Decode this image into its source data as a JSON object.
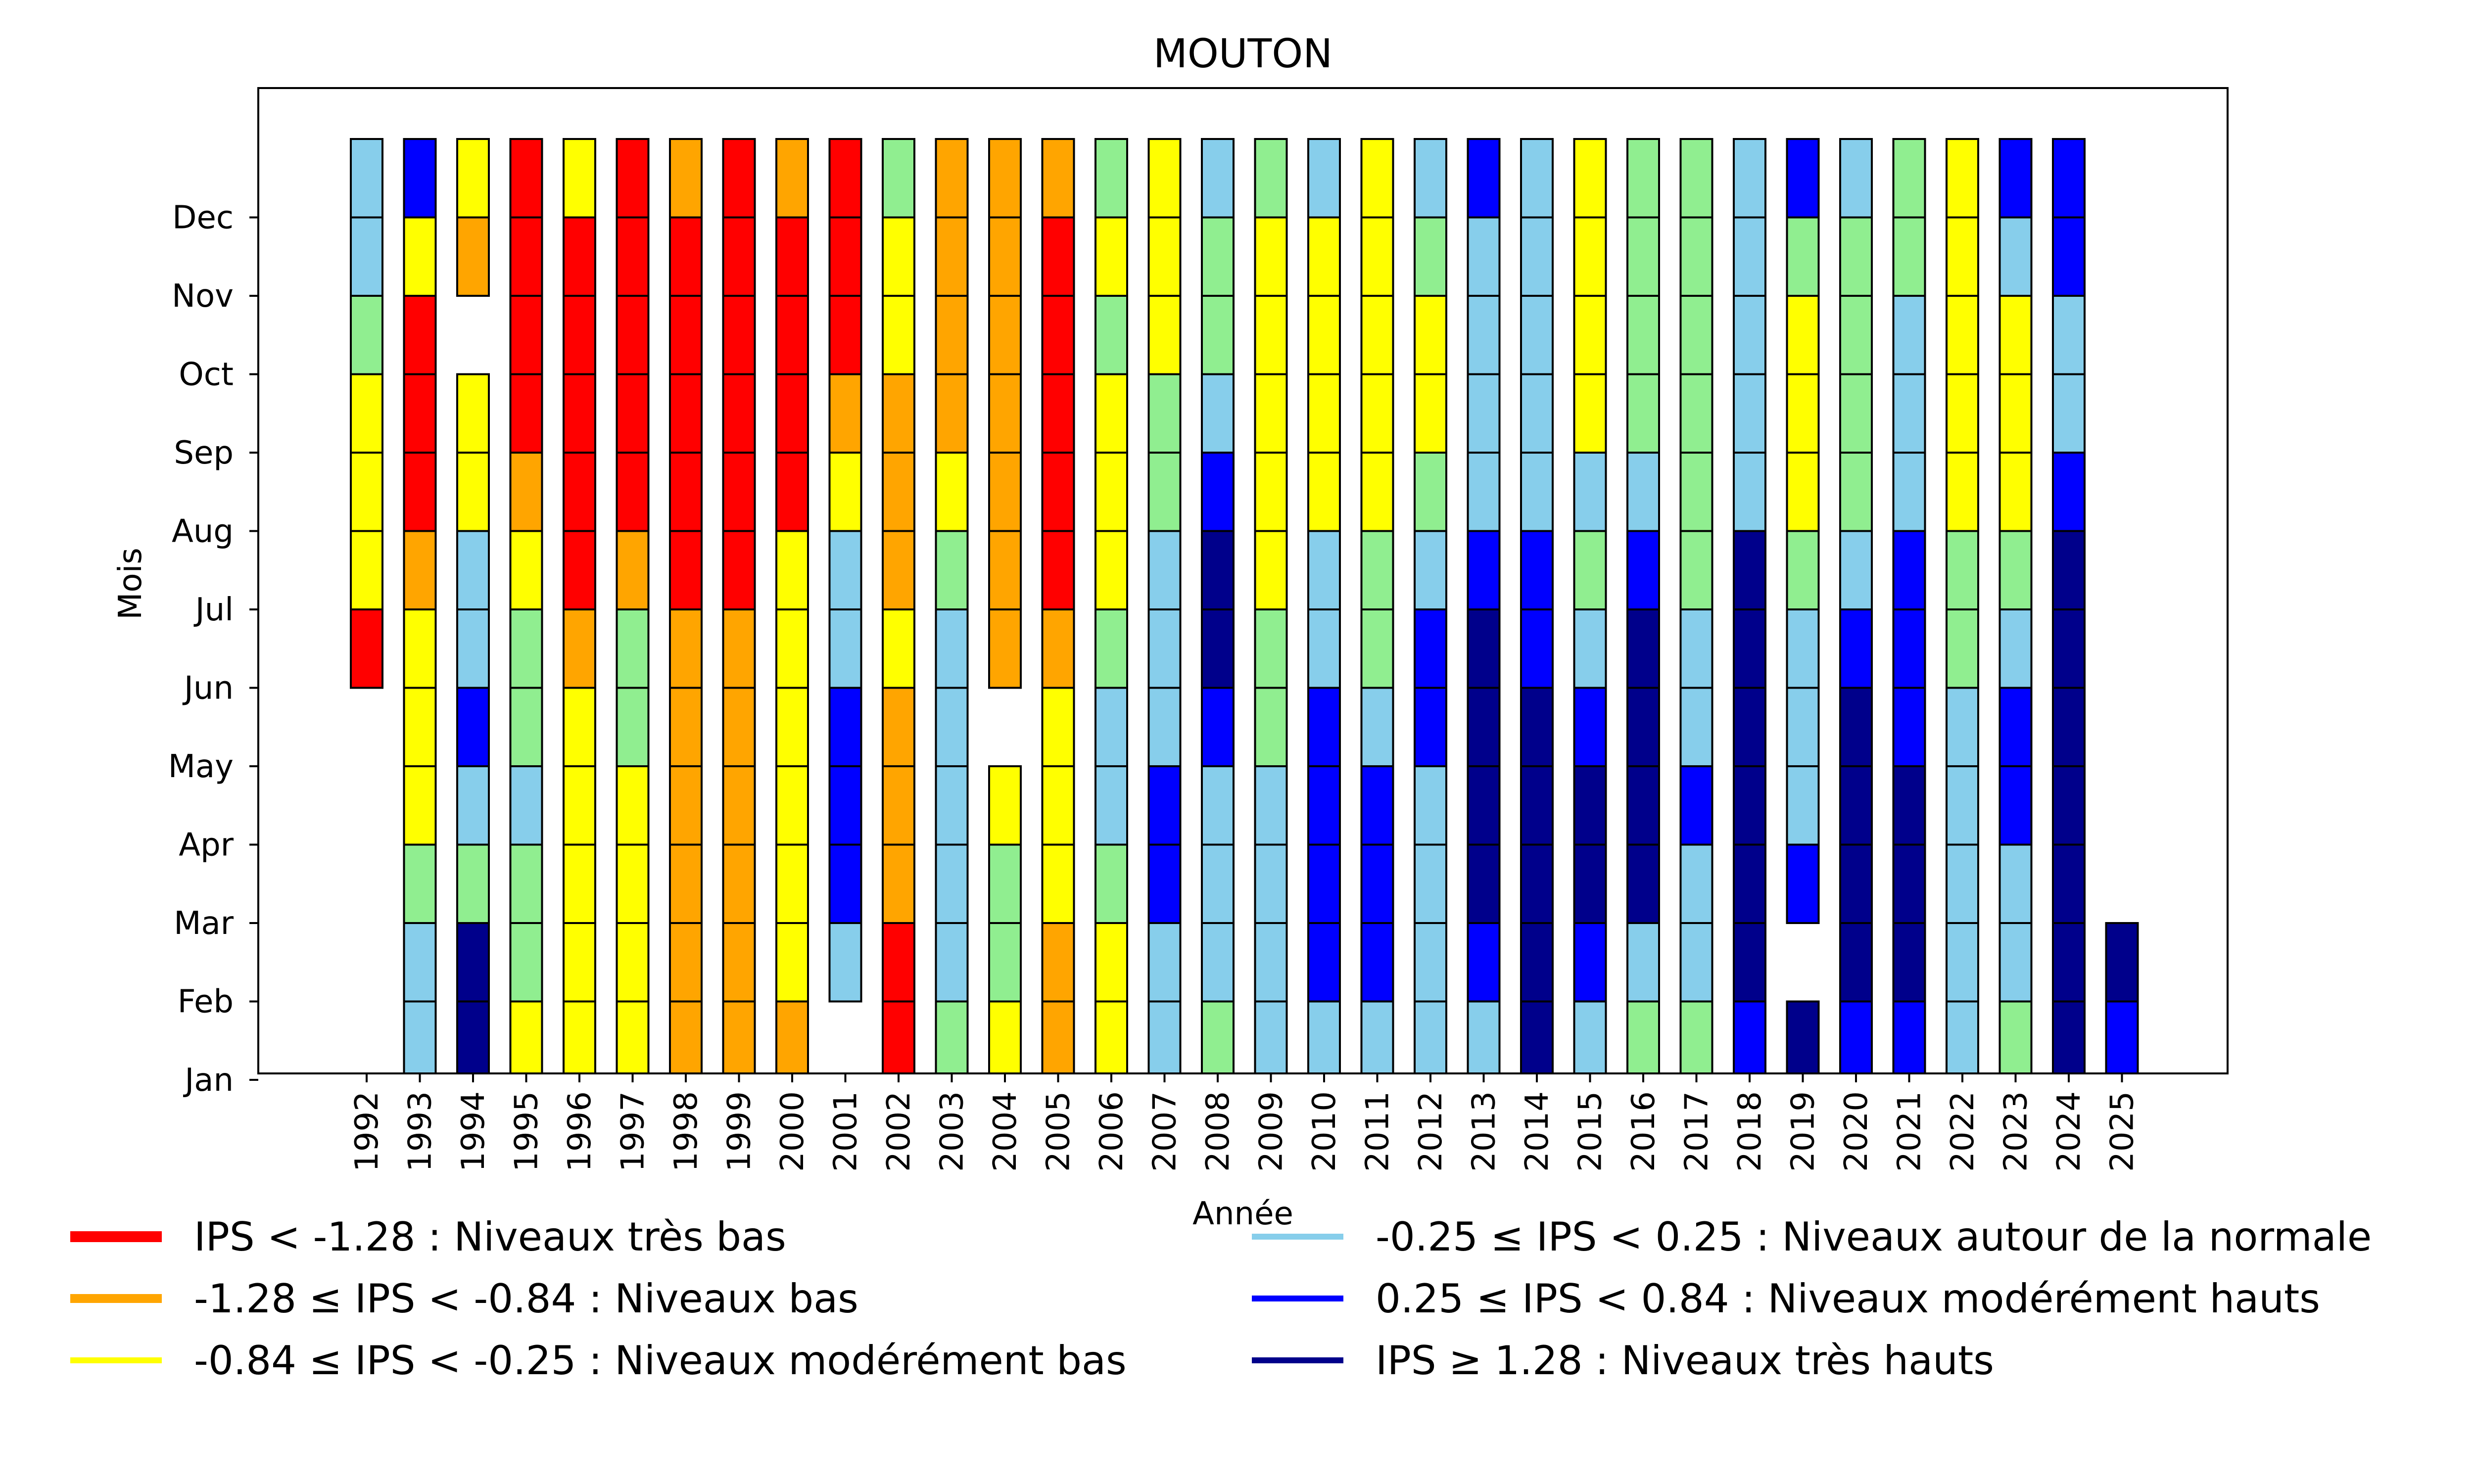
{
  "chart_data": {
    "type": "heatmap",
    "title": "MOUTON",
    "xlabel": "Année",
    "ylabel": "Mois",
    "years": [
      1992,
      1993,
      1994,
      1995,
      1996,
      1997,
      1998,
      1999,
      2000,
      2001,
      2002,
      2003,
      2004,
      2005,
      2006,
      2007,
      2008,
      2009,
      2010,
      2011,
      2012,
      2013,
      2014,
      2015,
      2016,
      2017,
      2018,
      2019,
      2020,
      2021,
      2022,
      2023,
      2024,
      2025
    ],
    "year_labels": [
      "1992",
      "1993",
      "1994",
      "1995",
      "1996",
      "1997",
      "1998",
      "1999",
      "2000",
      "2001",
      "2002",
      "2003",
      "2004",
      "2005",
      "2006",
      "2007",
      "2008",
      "2009",
      "2010",
      "2011",
      "2012",
      "2013",
      "2014",
      "2015",
      "2016",
      "2017",
      "2018",
      "2019",
      "2020",
      "2021",
      "2022",
      "2023",
      "2024",
      "2025"
    ],
    "months": [
      "Jan",
      "Feb",
      "Mar",
      "Apr",
      "May",
      "Jun",
      "Jul",
      "Aug",
      "Sep",
      "Oct",
      "Nov",
      "Dec"
    ],
    "cell_key": "Each year lists 12 class codes Jan..Dec; R=très bas, O=bas, Y=modérément bas, L=autour de la normale, B=modérément hauts, N=très hauts, null=no data",
    "values": {
      "1992": [
        null,
        null,
        null,
        null,
        null,
        "R",
        "Y",
        "Y",
        "Y",
        "G",
        "L",
        "L"
      ],
      "1993": [
        "L",
        "L",
        "G",
        "Y",
        "Y",
        "Y",
        "O",
        "R",
        "R",
        "R",
        "Y",
        "B"
      ],
      "1994": [
        "N",
        "N",
        "G",
        "L",
        "B",
        "L",
        "L",
        "Y",
        "Y",
        null,
        "O",
        "Y"
      ],
      "1995": [
        "Y",
        "G",
        "G",
        "L",
        "G",
        "G",
        "Y",
        "O",
        "R",
        "R",
        "R",
        "R"
      ],
      "1996": [
        "Y",
        "Y",
        "Y",
        "Y",
        "Y",
        "O",
        "R",
        "R",
        "R",
        "R",
        "R",
        "Y"
      ],
      "1997": [
        "Y",
        "Y",
        "Y",
        "Y",
        "G",
        "G",
        "O",
        "R",
        "R",
        "R",
        "R",
        "R"
      ],
      "1998": [
        "O",
        "O",
        "O",
        "O",
        "O",
        "O",
        "R",
        "R",
        "R",
        "R",
        "R",
        "O"
      ],
      "1999": [
        "O",
        "O",
        "O",
        "O",
        "O",
        "O",
        "R",
        "R",
        "R",
        "R",
        "R",
        "R"
      ],
      "2000": [
        "O",
        "Y",
        "Y",
        "Y",
        "Y",
        "Y",
        "Y",
        "R",
        "R",
        "R",
        "R",
        "O"
      ],
      "2001": [
        null,
        "L",
        "B",
        "B",
        "B",
        "L",
        "L",
        "Y",
        "O",
        "R",
        "R",
        "R"
      ],
      "2002": [
        "R",
        "R",
        "O",
        "O",
        "O",
        "Y",
        "O",
        "O",
        "O",
        "Y",
        "Y",
        "G"
      ],
      "2003": [
        "G",
        "L",
        "L",
        "L",
        "L",
        "L",
        "G",
        "Y",
        "O",
        "O",
        "O",
        "O"
      ],
      "2004": [
        "Y",
        "G",
        "G",
        "Y",
        null,
        "O",
        "O",
        "O",
        "O",
        "O",
        "O",
        "O"
      ],
      "2005": [
        "O",
        "O",
        "Y",
        "Y",
        "Y",
        "O",
        "R",
        "R",
        "R",
        "R",
        "R",
        "O"
      ],
      "2006": [
        "Y",
        "Y",
        "G",
        "L",
        "L",
        "G",
        "Y",
        "Y",
        "Y",
        "G",
        "Y",
        "G"
      ],
      "2007": [
        "L",
        "L",
        "B",
        "B",
        "L",
        "L",
        "L",
        "G",
        "G",
        "Y",
        "Y",
        "Y"
      ],
      "2008": [
        "G",
        "L",
        "L",
        "L",
        "B",
        "N",
        "N",
        "B",
        "L",
        "G",
        "G",
        "L"
      ],
      "2009": [
        "L",
        "L",
        "L",
        "L",
        "G",
        "G",
        "Y",
        "Y",
        "Y",
        "Y",
        "Y",
        "G"
      ],
      "2010": [
        "L",
        "B",
        "B",
        "B",
        "B",
        "L",
        "L",
        "Y",
        "Y",
        "Y",
        "Y",
        "L"
      ],
      "2011": [
        "L",
        "B",
        "B",
        "B",
        "L",
        "G",
        "G",
        "Y",
        "Y",
        "Y",
        "Y",
        "Y"
      ],
      "2012": [
        "L",
        "L",
        "L",
        "L",
        "B",
        "B",
        "L",
        "G",
        "Y",
        "Y",
        "G",
        "L"
      ],
      "2013": [
        "L",
        "B",
        "N",
        "N",
        "N",
        "N",
        "B",
        "L",
        "L",
        "L",
        "L",
        "B"
      ],
      "2014": [
        "N",
        "N",
        "N",
        "N",
        "N",
        "B",
        "B",
        "L",
        "L",
        "L",
        "L",
        "L"
      ],
      "2015": [
        "L",
        "B",
        "N",
        "N",
        "B",
        "L",
        "G",
        "L",
        "Y",
        "Y",
        "Y",
        "Y"
      ],
      "2016": [
        "G",
        "L",
        "N",
        "N",
        "N",
        "N",
        "B",
        "L",
        "G",
        "G",
        "G",
        "G"
      ],
      "2017": [
        "G",
        "L",
        "L",
        "B",
        "L",
        "L",
        "G",
        "G",
        "G",
        "G",
        "G",
        "G"
      ],
      "2018": [
        "B",
        "N",
        "N",
        "N",
        "N",
        "N",
        "N",
        "L",
        "L",
        "L",
        "L",
        "L"
      ],
      "2019": [
        "N",
        null,
        "B",
        "L",
        "L",
        "L",
        "G",
        "Y",
        "Y",
        "Y",
        "G",
        "B"
      ],
      "2020": [
        "B",
        "N",
        "N",
        "N",
        "N",
        "B",
        "L",
        "G",
        "G",
        "G",
        "G",
        "L"
      ],
      "2021": [
        "B",
        "N",
        "N",
        "N",
        "B",
        "B",
        "B",
        "L",
        "L",
        "L",
        "G",
        "G"
      ],
      "2022": [
        "L",
        "L",
        "L",
        "L",
        "L",
        "G",
        "G",
        "Y",
        "Y",
        "Y",
        "Y",
        "Y"
      ],
      "2023": [
        "G",
        "L",
        "L",
        "B",
        "B",
        "L",
        "G",
        "Y",
        "Y",
        "Y",
        "L",
        "B"
      ],
      "2024": [
        "N",
        "N",
        "N",
        "N",
        "N",
        "N",
        "N",
        "B",
        "L",
        "L",
        "B",
        "B"
      ],
      "2025": [
        "B",
        "N",
        null,
        null,
        null,
        null,
        null,
        null,
        null,
        null,
        null,
        null
      ]
    },
    "colors": {
      "R": "#ff0000",
      "O": "#ffa500",
      "Y": "#ffff00",
      "G": "#90ee90",
      "L": "#87ceeb",
      "B": "#0000ff",
      "N": "#00008b"
    },
    "legend": [
      {
        "code": "R",
        "label": "IPS < -1.28 : Niveaux très bas",
        "color": "#ff0000"
      },
      {
        "code": "O",
        "label": "-1.28 ≤ IPS < -0.84 : Niveaux bas",
        "color": "#ffa500"
      },
      {
        "code": "Y",
        "label": "-0.84 ≤ IPS < -0.25 : Niveaux modérément bas",
        "color": "#ffff00"
      },
      {
        "code": "L",
        "label": "-0.25 ≤ IPS < 0.25 : Niveaux autour de la normale",
        "color": "#87ceeb"
      },
      {
        "code": "B",
        "label": "0.25 ≤ IPS < 0.84 : Niveaux modérément hauts",
        "color": "#0000ff"
      },
      {
        "code": "N",
        "label": "IPS ≥ 1.28 : Niveaux très hauts",
        "color": "#00008b"
      }
    ],
    "legend_position": "bottom"
  }
}
